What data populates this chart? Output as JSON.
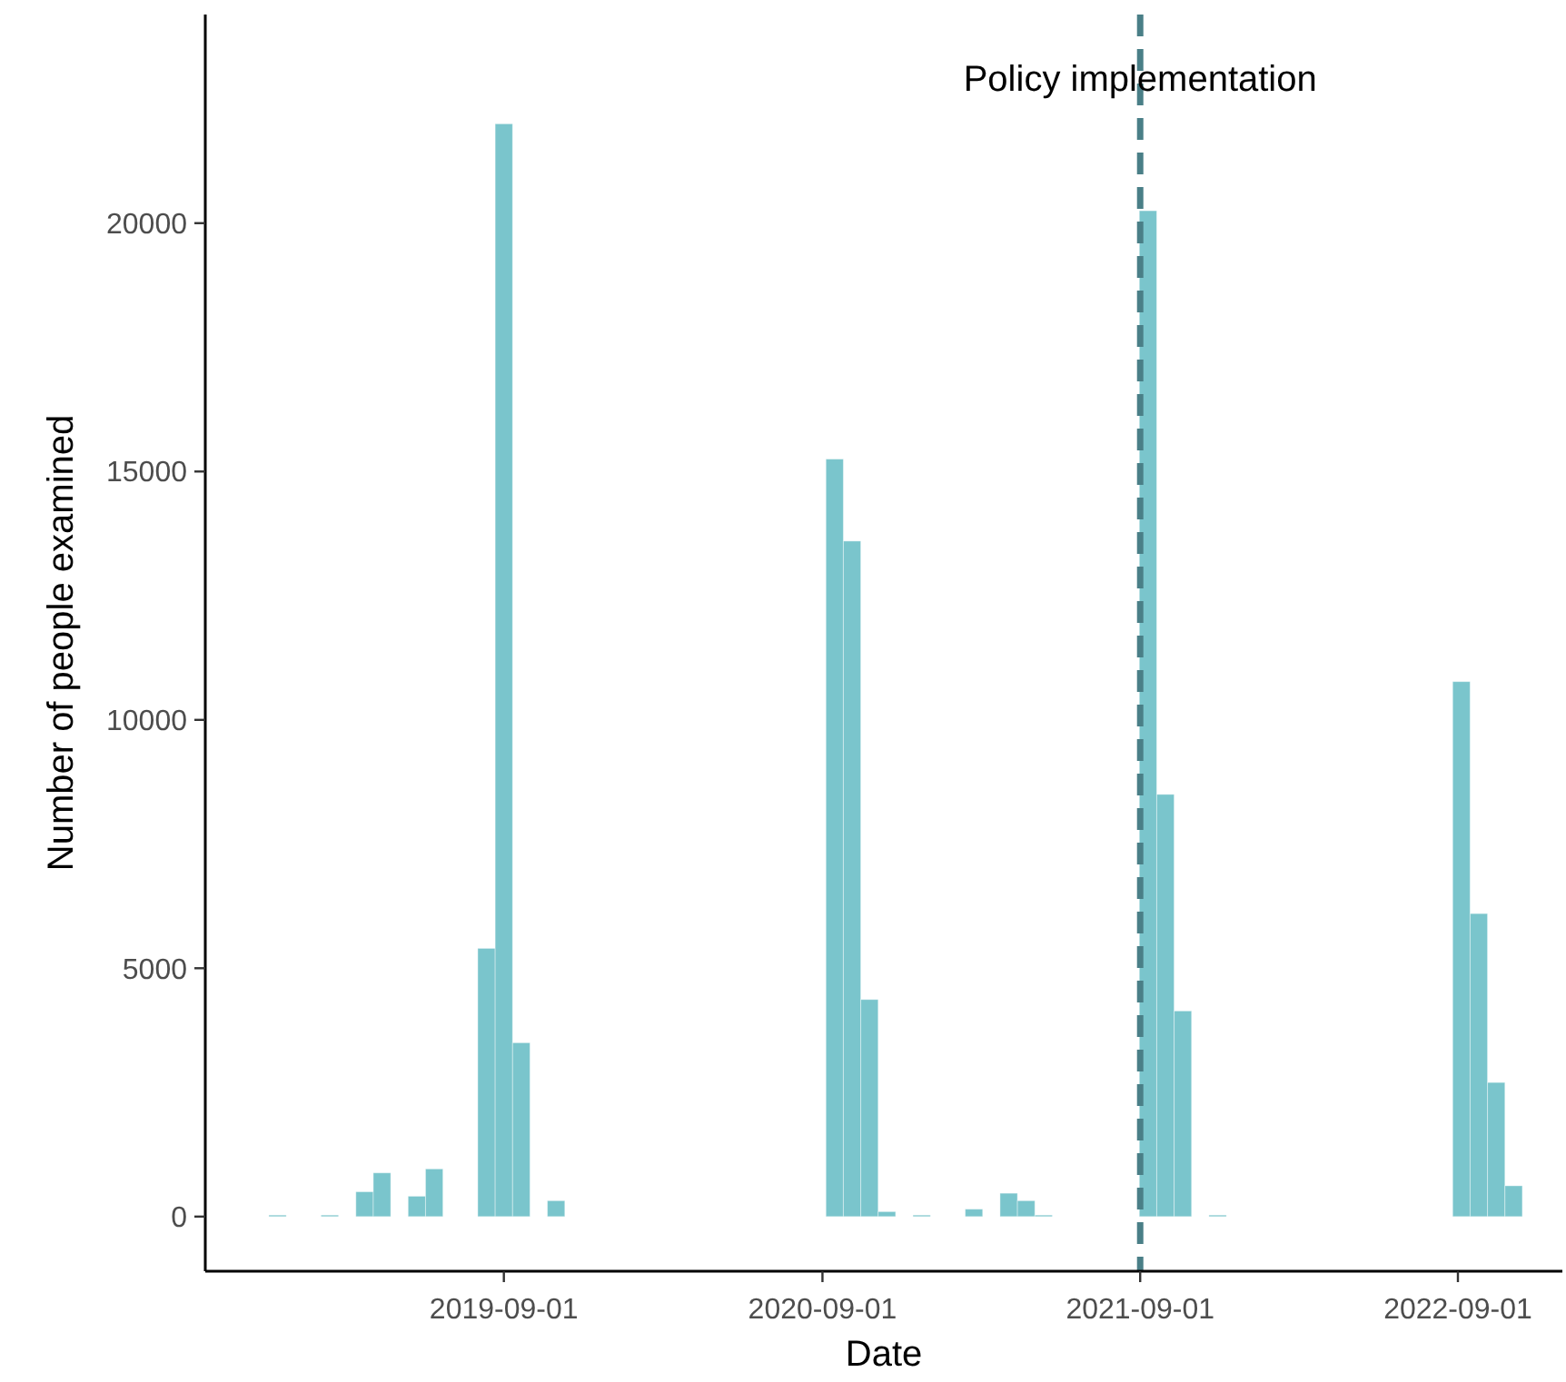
{
  "chart_data": {
    "type": "bar",
    "xlabel": "Date",
    "ylabel": "Number of people examined",
    "x": [
      "2018-12-15",
      "2019-02-13",
      "2019-03-25",
      "2019-04-14",
      "2019-05-24",
      "2019-06-13",
      "2019-08-12",
      "2019-09-01",
      "2019-09-21",
      "2019-10-31",
      "2020-09-15",
      "2020-10-05",
      "2020-10-25",
      "2020-11-14",
      "2020-12-24",
      "2021-02-22",
      "2021-04-03",
      "2021-04-23",
      "2021-05-13",
      "2021-09-10",
      "2021-09-30",
      "2021-10-20",
      "2021-11-29",
      "2022-09-05",
      "2022-09-25",
      "2022-10-15",
      "2022-11-04"
    ],
    "series": [
      {
        "color": "#7ac5cc",
        "values": [
          30,
          30,
          500,
          880,
          410,
          960,
          5400,
          22000,
          3500,
          320,
          15250,
          13600,
          4370,
          100,
          30,
          150,
          470,
          320,
          30,
          20250,
          8500,
          4140,
          30,
          10770,
          6100,
          2700,
          620
        ]
      }
    ],
    "xlim": [
      "2018-09-23",
      "2022-12-30"
    ],
    "xticks": [
      {
        "value": "2019-09-01",
        "label": "2019-09-01"
      },
      {
        "value": "2020-09-01",
        "label": "2020-09-01"
      },
      {
        "value": "2021-09-01",
        "label": "2021-09-01"
      },
      {
        "value": "2022-09-01",
        "label": "2022-09-01"
      }
    ],
    "ylim": [
      -1100,
      24200
    ],
    "yticks": [
      0,
      5000,
      10000,
      15000,
      20000
    ],
    "ref_lines": [
      {
        "axis": "x",
        "value": "2021-09-01",
        "label": "Policy implementation",
        "color": "#4a7f87",
        "line_style": "dashed"
      }
    ],
    "grid": false
  }
}
